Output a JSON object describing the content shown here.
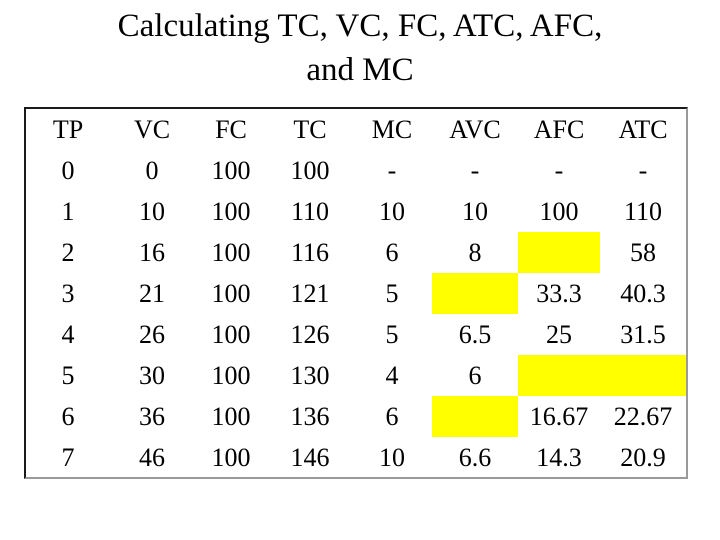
{
  "title": {
    "line1": "Calculating TC, VC, FC, ATC, AFC,",
    "line2": "and MC"
  },
  "table": {
    "columns": [
      "TP",
      "VC",
      "FC",
      "TC",
      "MC",
      "AVC",
      "AFC",
      "ATC"
    ],
    "highlight_color": "#ffff00",
    "rows": [
      [
        "0",
        "0",
        "100",
        "100",
        "-",
        "-",
        "-",
        "-"
      ],
      [
        "1",
        "10",
        "100",
        "110",
        "10",
        "10",
        "100",
        "110"
      ],
      [
        "2",
        "16",
        "100",
        "116",
        "6",
        "8",
        "",
        "58"
      ],
      [
        "3",
        "21",
        "100",
        "121",
        "5",
        "",
        "33.3",
        "40.3"
      ],
      [
        "4",
        "26",
        "100",
        "126",
        "5",
        "6.5",
        "25",
        "31.5"
      ],
      [
        "5",
        "30",
        "100",
        "130",
        "4",
        "6",
        "",
        ""
      ],
      [
        "6",
        "36",
        "100",
        "136",
        "6",
        "",
        "16.67",
        "22.67"
      ],
      [
        "7",
        "46",
        "100",
        "146",
        "10",
        "6.6",
        "14.3",
        "20.9"
      ]
    ],
    "blank_cells_highlighted": [
      {
        "row": 2,
        "column": "AFC"
      },
      {
        "row": 3,
        "column": "AVC"
      },
      {
        "row": 5,
        "column": "AFC"
      },
      {
        "row": 5,
        "column": "ATC"
      },
      {
        "row": 6,
        "column": "AVC"
      }
    ]
  }
}
